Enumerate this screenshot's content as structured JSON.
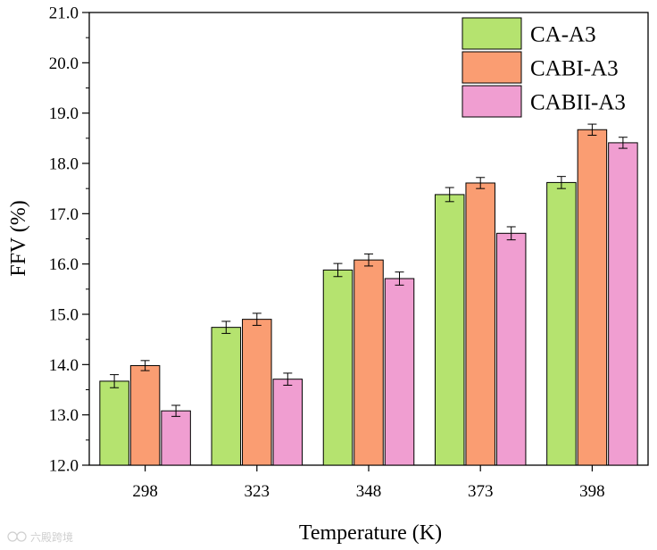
{
  "chart_data": {
    "type": "bar",
    "xlabel": "Temperature (K)",
    "ylabel": "FFV (%)",
    "categories": [
      "298",
      "323",
      "348",
      "373",
      "398"
    ],
    "ylim": [
      12.0,
      21.0
    ],
    "yticks": [
      "12.0",
      "13.0",
      "14.0",
      "15.0",
      "16.0",
      "17.0",
      "18.0",
      "19.0",
      "20.0",
      "21.0"
    ],
    "grid": false,
    "legend_position": "top-right",
    "series": [
      {
        "name": "CA-A3",
        "color": "#b5e36f",
        "values": [
          13.67,
          14.74,
          15.88,
          17.38,
          17.62
        ],
        "errors": [
          0.13,
          0.12,
          0.13,
          0.14,
          0.12
        ]
      },
      {
        "name": "CABI-A3",
        "color": "#fa9d72",
        "values": [
          13.98,
          14.9,
          16.08,
          17.61,
          18.67
        ],
        "errors": [
          0.1,
          0.12,
          0.12,
          0.11,
          0.11
        ]
      },
      {
        "name": "CABII-A3",
        "color": "#f09ed1",
        "values": [
          13.08,
          13.71,
          15.71,
          16.61,
          18.41
        ],
        "errors": [
          0.11,
          0.12,
          0.13,
          0.13,
          0.11
        ]
      }
    ]
  },
  "watermark": "六殿跨境"
}
